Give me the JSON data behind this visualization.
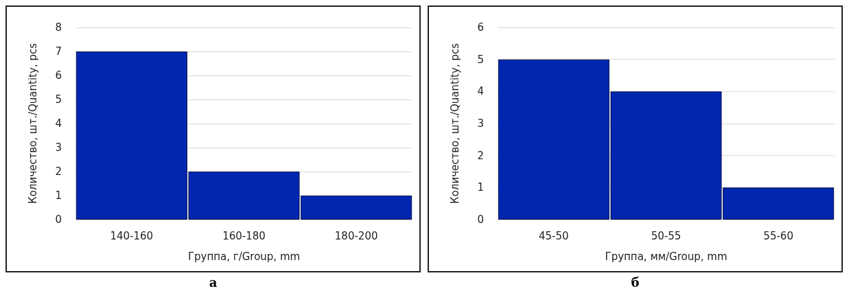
{
  "chart_data": [
    {
      "type": "bar",
      "categories": [
        "140-160",
        "160-180",
        "180-200"
      ],
      "values": [
        7,
        2,
        1
      ],
      "color": "#0026b0",
      "xlabel": "Группа, г/Group, mm",
      "ylabel": "Количество, шт./Quantity, pcs",
      "ylim": [
        0,
        8
      ],
      "yticks": [
        0,
        1,
        2,
        3,
        4,
        5,
        6,
        7,
        8
      ],
      "grid": "y",
      "annotations": [
        "а"
      ]
    },
    {
      "type": "bar",
      "categories": [
        "45-50",
        "50-55",
        "55-60"
      ],
      "values": [
        5,
        4,
        1
      ],
      "color": "#0026b0",
      "xlabel": "Группа, мм/Group, mm",
      "ylabel": "Количество, шт./Quantity, pcs",
      "ylim": [
        0,
        6
      ],
      "yticks": [
        0,
        1,
        2,
        3,
        4,
        5,
        6
      ],
      "grid": "y",
      "annotations": [
        "б"
      ]
    }
  ]
}
